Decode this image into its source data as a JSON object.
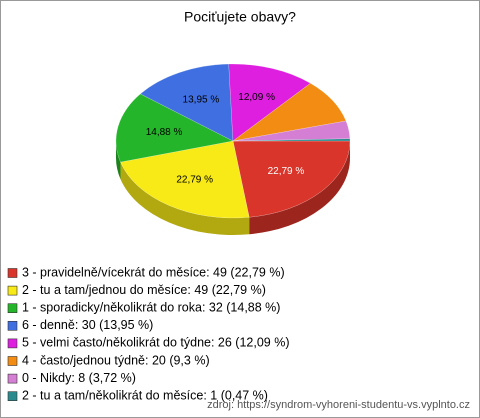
{
  "chart_data": {
    "type": "pie",
    "title": "Pociťujete obavy?",
    "categories": [
      "3 - pravidelně/vícekrát do měsíce: 49 (22,79 %)",
      "2 - tu a tam/jednou do měsíce: 49 (22,79 %)",
      "1 - sporadicky/několikrát do roka: 32 (14,88 %)",
      "6 - denně: 30 (13,95 %)",
      "5 - velmi často/několikrát do týdne: 26 (12,09 %)",
      "4 - často/jednou týdně: 20 (9,3 %)",
      "0 - Nikdy: 8 (3,72 %)",
      "2 - tu a tam/několikrát do měsíce: 1 (0,47 %)"
    ],
    "values": [
      22.79,
      22.79,
      14.88,
      13.95,
      12.09,
      9.3,
      3.72,
      0.47
    ],
    "value_labels": [
      "22,79 %",
      "22,79 %",
      "14,88 %",
      "13,95 %",
      "12,09 %",
      null,
      null,
      null
    ],
    "colors": [
      "#d9352a",
      "#f7ea16",
      "#25b52a",
      "#3f6fe0",
      "#df1fe0",
      "#f28c12",
      "#d47ed4",
      "#2a8a8e"
    ],
    "source": "zdroj: https://syndrom-vyhoreni-studentu-vs.vyplnto.cz"
  }
}
